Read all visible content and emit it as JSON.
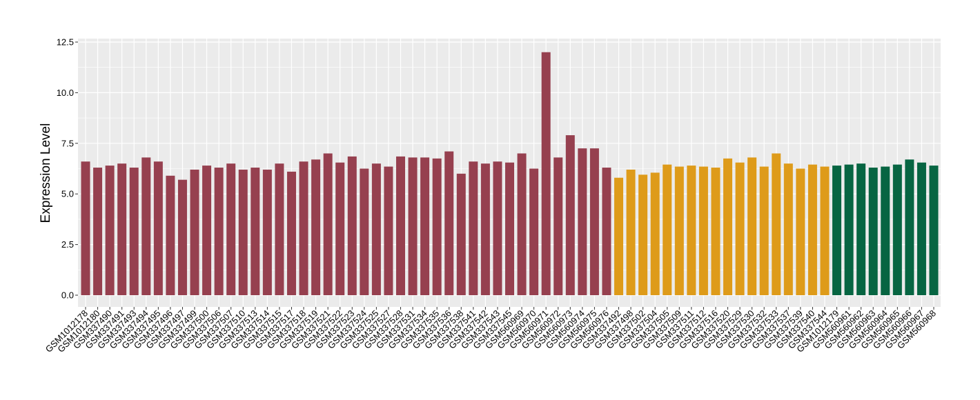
{
  "chart_data": {
    "type": "bar",
    "title": "",
    "xlabel": "",
    "ylabel": "Expression Level",
    "ylim": [
      0,
      12.5
    ],
    "yticks": [
      "0.0",
      "2.5",
      "5.0",
      "7.5",
      "10.0",
      "12.5"
    ],
    "grid": true,
    "legend": "none",
    "colors": {
      "group1": "#96404f",
      "group2": "#de9b1a",
      "group3": "#076542",
      "panel": "#ebebeb",
      "gridline": "#ffffff"
    },
    "categories": [
      "GSM1012178",
      "GSM1012180",
      "GSM337490",
      "GSM337491",
      "GSM337493",
      "GSM337494",
      "GSM337495",
      "GSM337496",
      "GSM337497",
      "GSM337499",
      "GSM337500",
      "GSM337506",
      "GSM337507",
      "GSM337510",
      "GSM337513",
      "GSM337514",
      "GSM337515",
      "GSM337517",
      "GSM337518",
      "GSM337519",
      "GSM337521",
      "GSM337522",
      "GSM337523",
      "GSM337524",
      "GSM337525",
      "GSM337527",
      "GSM337528",
      "GSM337531",
      "GSM337534",
      "GSM337535",
      "GSM337536",
      "GSM337538",
      "GSM337541",
      "GSM337542",
      "GSM337543",
      "GSM337545",
      "GSM560969",
      "GSM560970",
      "GSM560971",
      "GSM560972",
      "GSM560973",
      "GSM560974",
      "GSM560975",
      "GSM560976",
      "GSM337492",
      "GSM337498",
      "GSM337502",
      "GSM337504",
      "GSM337505",
      "GSM337509",
      "GSM337511",
      "GSM337512",
      "GSM337516",
      "GSM337520",
      "GSM337529",
      "GSM337530",
      "GSM337532",
      "GSM337533",
      "GSM337537",
      "GSM337539",
      "GSM337540",
      "GSM337544",
      "GSM1012179",
      "GSM560961",
      "GSM560962",
      "GSM560963",
      "GSM560964",
      "GSM560965",
      "GSM560966",
      "GSM560967",
      "GSM560968"
    ],
    "values": [
      6.6,
      6.3,
      6.4,
      6.5,
      6.3,
      6.8,
      6.6,
      5.9,
      5.7,
      6.2,
      6.4,
      6.3,
      6.5,
      6.2,
      6.3,
      6.2,
      6.5,
      6.1,
      6.6,
      6.7,
      7.0,
      6.55,
      6.85,
      6.25,
      6.5,
      6.35,
      6.85,
      6.8,
      6.8,
      6.75,
      7.1,
      6.0,
      6.6,
      6.5,
      6.6,
      6.55,
      7.0,
      6.25,
      12.0,
      6.8,
      7.9,
      7.25,
      7.25,
      6.3,
      5.8,
      6.2,
      5.95,
      6.05,
      6.45,
      6.35,
      6.4,
      6.35,
      6.3,
      6.75,
      6.55,
      6.8,
      6.35,
      7.0,
      6.5,
      6.25,
      6.45,
      6.35,
      6.4,
      6.45,
      6.5,
      6.3,
      6.35,
      6.45,
      6.7,
      6.55,
      6.4
    ],
    "groups": [
      1,
      1,
      1,
      1,
      1,
      1,
      1,
      1,
      1,
      1,
      1,
      1,
      1,
      1,
      1,
      1,
      1,
      1,
      1,
      1,
      1,
      1,
      1,
      1,
      1,
      1,
      1,
      1,
      1,
      1,
      1,
      1,
      1,
      1,
      1,
      1,
      1,
      1,
      1,
      1,
      1,
      1,
      1,
      1,
      2,
      2,
      2,
      2,
      2,
      2,
      2,
      2,
      2,
      2,
      2,
      2,
      2,
      2,
      2,
      2,
      2,
      2,
      3,
      3,
      3,
      3,
      3,
      3,
      3,
      3,
      3
    ]
  }
}
